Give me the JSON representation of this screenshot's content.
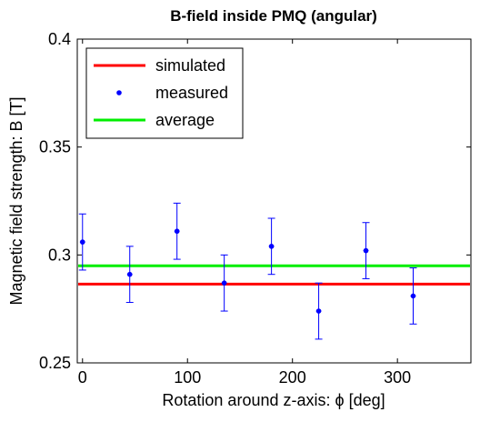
{
  "chart_data": {
    "type": "scatter",
    "title": "B-field inside PMQ (angular)",
    "xlabel": "Rotation around z-axis: ϕ [deg]",
    "ylabel": "Magnetic field strength: B [T]",
    "xlim": [
      -5,
      370
    ],
    "ylim": [
      0.25,
      0.4
    ],
    "xticks": [
      "0",
      "100",
      "200",
      "300"
    ],
    "xtick_values": [
      0,
      100,
      200,
      300
    ],
    "yticks": [
      "0.25",
      "0.3",
      "0.35",
      "0.4"
    ],
    "ytick_values": [
      0.25,
      0.3,
      0.35,
      0.4
    ],
    "grid": false,
    "legend_position": "top-left",
    "series": [
      {
        "name": "simulated",
        "kind": "hline",
        "color": "#ff0000",
        "y": 0.2865
      },
      {
        "name": "measured",
        "kind": "points-with-errorbars",
        "color": "#0000ff",
        "x": [
          0,
          45,
          90,
          135,
          180,
          225,
          270,
          315
        ],
        "y": [
          0.306,
          0.291,
          0.311,
          0.287,
          0.304,
          0.274,
          0.302,
          0.281
        ],
        "yerr": [
          0.013,
          0.013,
          0.013,
          0.013,
          0.013,
          0.013,
          0.013,
          0.013
        ],
        "xerr": [
          2.5,
          2.5,
          2.5,
          2.5,
          2.5,
          2.5,
          2.5,
          2.5
        ]
      },
      {
        "name": "average",
        "kind": "hline",
        "color": "#00ee00",
        "y": 0.295
      }
    ]
  }
}
